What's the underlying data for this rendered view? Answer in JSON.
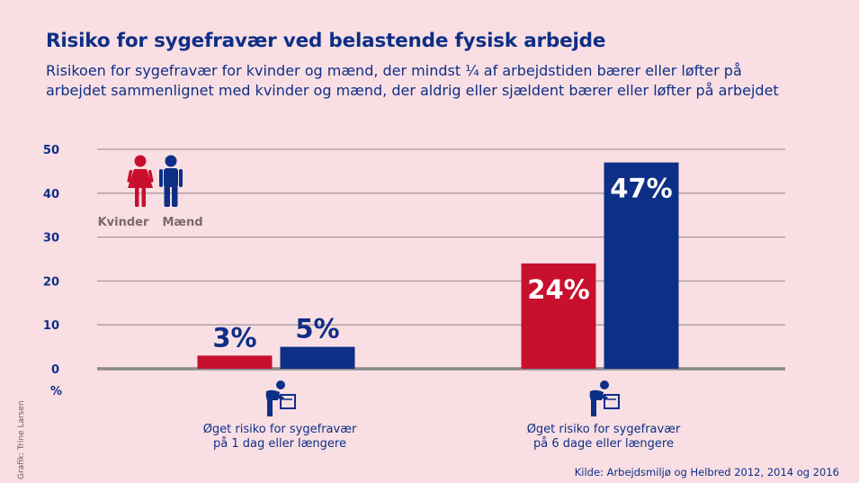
{
  "chart_data": {
    "type": "bar",
    "title": "Risiko for sygefravær ved belastende fysisk arbejde",
    "subtitle_lines": [
      "Risikoen for sygefravær for kvinder og mænd, der mindst ¼ af arbejdstiden bærer eller løfter på",
      "arbejdet sammenlignet med kvinder og mænd, der aldrig eller sjældent bærer eller løfter på arbejdet"
    ],
    "ylabel": "%",
    "ylim": [
      0,
      50
    ],
    "yticks": [
      0,
      10,
      20,
      30,
      40,
      50
    ],
    "grid": true,
    "categories": [
      [
        "Øget risiko for sygefravær",
        "på 1 dag eller længere"
      ],
      [
        "Øget risiko for sygefravær",
        "på 6 dage eller længere"
      ]
    ],
    "series": [
      {
        "name": "Kvinder",
        "color": "#c8102e",
        "values": [
          3,
          24
        ],
        "labels": [
          "3%",
          "24%"
        ]
      },
      {
        "name": "Mænd",
        "color": "#0e2f86",
        "values": [
          5,
          47
        ],
        "labels": [
          "5%",
          "47%"
        ]
      }
    ],
    "legend_position": "top-left"
  },
  "source": "Kilde: Arbejdsmiljø og Helbred 2012, 2014 og 2016",
  "credit": "Grafik: Trine Larsen",
  "icons": {
    "legend_women": "woman-icon",
    "legend_men": "man-icon",
    "category": "person-lifting-box-icon"
  }
}
